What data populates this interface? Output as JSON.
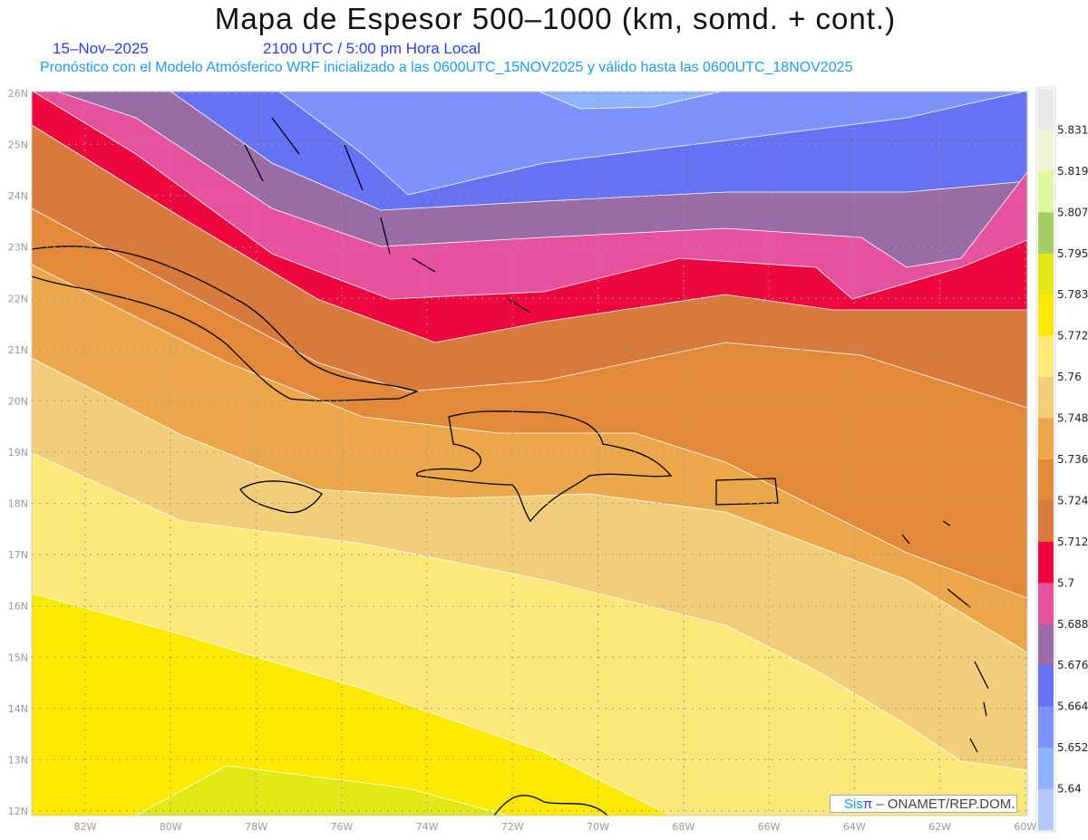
{
  "header": {
    "title": "Mapa de Espesor 500–1000 (km, somd. + cont.)",
    "date": "15–Nov–2025",
    "time": "2100 UTC / 5:00 pm Hora Local",
    "subtitle": "Pronóstico con el Modelo Atmósferico WRF inicializado a las 0600UTC_15NOV2025 y válido hasta las  0600UTC_18NOV2025"
  },
  "map": {
    "lon_labels": [
      "82W",
      "80W",
      "78W",
      "76W",
      "74W",
      "72W",
      "70W",
      "68W",
      "66W",
      "64W",
      "62W",
      "60W"
    ],
    "lat_labels": [
      "26N",
      "25N",
      "24N",
      "23N",
      "22N",
      "21N",
      "20N",
      "19N",
      "18N",
      "17N",
      "16N",
      "15N",
      "14N",
      "13N",
      "12N"
    ]
  },
  "colorbar": {
    "colors": [
      "#e8e8e8",
      "#eef5d5",
      "#e2f5a0",
      "#a8cc64",
      "#e1e814",
      "#fce800",
      "#fde97a",
      "#f2cd7a",
      "#eba74a",
      "#e38a3a",
      "#d87a3c",
      "#ee063e",
      "#e6529e",
      "#9a6ca6",
      "#6672f4",
      "#7e92fb",
      "#8eb2fb",
      "#b4c8fb"
    ],
    "labels": [
      "5.831",
      "5.819",
      "5.807",
      "5.795",
      "5.783",
      "5.772",
      "5.76",
      "5.748",
      "5.736",
      "5.724",
      "5.712",
      "5.7",
      "5.688",
      "5.676",
      "5.664",
      "5.652",
      "5.64"
    ]
  },
  "credit": {
    "sis": "Sis",
    "pi": "π",
    "text": "–  ONAMET/REP.DOM."
  }
}
